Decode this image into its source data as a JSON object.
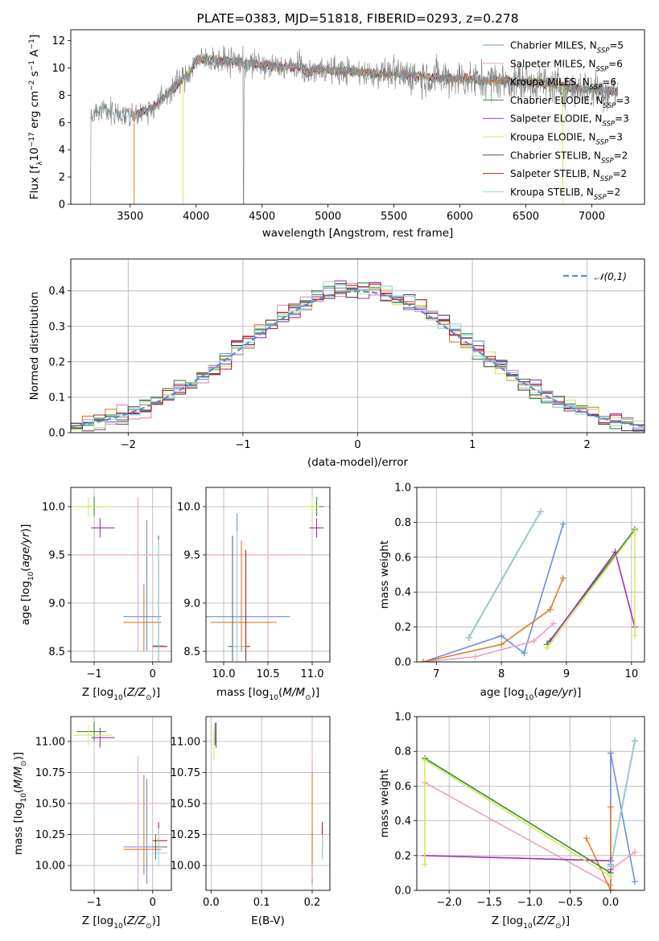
{
  "colors": {
    "grid": "#b0b0b0",
    "spec": [
      "#6a8fd8",
      "#e8a0c8",
      "#e07b28",
      "#3a8a3a",
      "#9b35b0",
      "#d4e860",
      "#555555",
      "#b02020",
      "#8fd8e0"
    ],
    "hist": [
      "#6a8fd8",
      "#e88ac2",
      "#e07b28",
      "#2f8f2f",
      "#9b35b0",
      "#c9e870",
      "#444444",
      "#b02020",
      "#8fd8e0"
    ]
  },
  "chart_data": [
    {
      "type": "line",
      "name": "spectrum",
      "title": "PLATE=0383, MJD=51818, FIBERID=0293, z=0.278",
      "xlabel": "wavelength [Angstrom, rest frame]",
      "ylabel": "Flux [f_λ 10^-17 erg cm^-2 s^-1 A^-1]",
      "xlim": [
        3050,
        7400
      ],
      "ylim": [
        0,
        12.8
      ],
      "xticks": [
        "3500",
        "4000",
        "4500",
        "5000",
        "5500",
        "6000",
        "6500",
        "7000"
      ],
      "yticks": [
        "0",
        "2",
        "4",
        "6",
        "8",
        "10",
        "12"
      ],
      "continuum": {
        "x": [
          3200,
          3250,
          3300,
          3400,
          3500,
          3600,
          3700,
          3800,
          3900,
          3950,
          4000,
          4100,
          4200,
          4300,
          4400,
          4600,
          4800,
          4840,
          4900,
          5000,
          5200,
          5400,
          5600,
          5800,
          6000,
          6200,
          6400,
          6600,
          6800,
          7000,
          7200
        ],
        "y": [
          6.2,
          6.8,
          7.0,
          6.7,
          6.5,
          6.8,
          7.3,
          8.3,
          9.2,
          9.6,
          10.6,
          10.6,
          10.5,
          10.5,
          10.3,
          10.1,
          10.1,
          9.6,
          9.9,
          9.9,
          9.7,
          9.6,
          9.5,
          9.3,
          9.2,
          9.1,
          9.0,
          8.9,
          8.6,
          8.4,
          8.3
        ]
      },
      "legend": [
        {
          "name": "Chabrier MILES",
          "nssp": "5"
        },
        {
          "name": "Salpeter MILES",
          "nssp": "6"
        },
        {
          "name": "Kroupa MILES",
          "nssp": "6"
        },
        {
          "name": "Chabrier ELODIE",
          "nssp": "3"
        },
        {
          "name": "Salpeter ELODIE",
          "nssp": "3"
        },
        {
          "name": "Kroupa ELODIE",
          "nssp": "3"
        },
        {
          "name": "Chabrier STELIB",
          "nssp": "2"
        },
        {
          "name": "Salpeter STELIB",
          "nssp": "2"
        },
        {
          "name": "Kroupa STELIB",
          "nssp": "2"
        }
      ],
      "legend_position": "upper-right"
    },
    {
      "type": "histogram",
      "name": "residuals",
      "xlabel": "(data-model)/error",
      "ylabel": "Normed distribution",
      "xlim": [
        -2.5,
        2.5
      ],
      "ylim": [
        0,
        0.49
      ],
      "xticks": [
        "−2",
        "−1",
        "0",
        "1",
        "2"
      ],
      "yticks": [
        "0.0",
        "0.1",
        "0.2",
        "0.3",
        "0.4"
      ],
      "bin_width": 0.1,
      "legend": "𝒩(0,1)",
      "series_count": 9
    },
    {
      "type": "errorbar",
      "name": "age-vs-Z",
      "xlabel": "Z [log10(Z/Z⊙)]",
      "ylabel": "age  [log10(age/yr)]",
      "xlim": [
        -1.4,
        0.32
      ],
      "ylim": [
        8.39,
        10.2
      ],
      "xticks": [
        "−1",
        "0"
      ],
      "yticks": [
        "8.5",
        "9.0",
        "9.5",
        "10.0"
      ],
      "points": [
        {
          "x": -0.1,
          "xerr": [
            0.4,
            0.25
          ],
          "y": 8.86,
          "yerr": [
            0.35,
            1.0
          ]
        },
        {
          "x": -0.25,
          "xerr": [
            1.0,
            0.5
          ],
          "y": 9.5,
          "yerr": [
            1.0,
            0.6
          ]
        },
        {
          "x": -0.15,
          "xerr": [
            0.35,
            0.3
          ],
          "y": 8.8,
          "yerr": [
            0.3,
            0.4
          ]
        },
        {
          "x": -1.0,
          "xerr": [
            0.3,
            0.2
          ],
          "y": 10.0,
          "yerr": [
            0.1,
            0.1
          ]
        },
        {
          "x": -0.9,
          "xerr": [
            0.15,
            0.25
          ],
          "y": 9.78,
          "yerr": [
            0.1,
            0.1
          ]
        },
        {
          "x": -1.1,
          "xerr": [
            0.25,
            0.4
          ],
          "y": 10.0,
          "yerr": [
            0.1,
            0.1
          ]
        },
        {
          "x": 0.1,
          "xerr": [
            0.1,
            0.1
          ],
          "y": 8.55,
          "yerr": [
            0.2,
            1.15
          ]
        },
        {
          "x": 0.1,
          "xerr": [
            0.1,
            0.15
          ],
          "y": 8.55,
          "yerr": [
            0.2,
            0.9
          ]
        },
        {
          "x": 0.1,
          "xerr": [
            0.1,
            0.1
          ],
          "y": 8.56,
          "yerr": [
            0.2,
            1.1
          ]
        }
      ]
    },
    {
      "type": "errorbar",
      "name": "age-vs-mass",
      "xlabel": "mass [log10(M/M⊙)]",
      "ylabel": "",
      "xlim": [
        9.8,
        11.2
      ],
      "ylim": [
        8.39,
        10.2
      ],
      "xticks": [
        "10.0",
        "10.5",
        "11.0"
      ],
      "yticks": [
        "8.5",
        "9.0",
        "9.5",
        "10.0"
      ],
      "points": [
        {
          "x": 10.15,
          "xerr": [
            0.35,
            0.6
          ],
          "y": 8.86,
          "yerr": [
            0.35,
            1.07
          ]
        },
        {
          "x": 10.5,
          "xerr": [
            0.9,
            0.4
          ],
          "y": 9.5,
          "yerr": [
            1.0,
            0.6
          ]
        },
        {
          "x": 10.2,
          "xerr": [
            0.35,
            0.4
          ],
          "y": 8.8,
          "yerr": [
            0.3,
            0.85
          ]
        },
        {
          "x": 11.05,
          "xerr": [
            0.1,
            0.08
          ],
          "y": 10.0,
          "yerr": [
            0.1,
            0.1
          ]
        },
        {
          "x": 11.05,
          "xerr": [
            0.08,
            0.08
          ],
          "y": 9.78,
          "yerr": [
            0.1,
            0.1
          ]
        },
        {
          "x": 11.0,
          "xerr": [
            0.1,
            0.08
          ],
          "y": 10.0,
          "yerr": [
            0.1,
            0.1
          ]
        },
        {
          "x": 10.1,
          "xerr": [
            0.05,
            0.05
          ],
          "y": 8.55,
          "yerr": [
            0.15,
            1.15
          ]
        },
        {
          "x": 10.25,
          "xerr": [
            0.05,
            0.05
          ],
          "y": 8.55,
          "yerr": [
            0.15,
            1.0
          ]
        },
        {
          "x": 10.15,
          "xerr": [
            0.05,
            0.1
          ],
          "y": 8.55,
          "yerr": [
            0.15,
            1.2
          ]
        }
      ]
    },
    {
      "type": "line",
      "name": "massweight-vs-age",
      "xlabel": "age  [log10(age/yr)]",
      "ylabel": "mass weight",
      "xlim": [
        6.7,
        10.2
      ],
      "ylim": [
        0,
        1
      ],
      "xticks": [
        "7",
        "8",
        "9",
        "10"
      ],
      "yticks": [
        "0.0",
        "0.2",
        "0.4",
        "0.6",
        "0.8",
        "1.0"
      ],
      "series": [
        {
          "x": [
            6.8,
            8.0,
            8.35,
            8.95
          ],
          "y": [
            0.0,
            0.15,
            0.05,
            0.79
          ]
        },
        {
          "x": [
            6.8,
            7.6,
            8.5,
            8.8
          ],
          "y": [
            0.0,
            0.03,
            0.12,
            0.22
          ]
        },
        {
          "x": [
            6.8,
            8.0,
            8.75,
            8.95
          ],
          "y": [
            0.0,
            0.1,
            0.3,
            0.48
          ]
        },
        {
          "x": [
            8.7,
            10.05
          ],
          "y": [
            0.1,
            0.76
          ]
        },
        {
          "x": [
            8.75,
            9.75,
            10.05
          ],
          "y": [
            0.12,
            0.63,
            0.2
          ]
        },
        {
          "x": [
            8.7,
            10.05,
            10.05
          ],
          "y": [
            0.08,
            0.75,
            0.15
          ]
        },
        {
          "x": [
            7.5,
            8.6
          ],
          "y": [
            0.14,
            0.86
          ]
        },
        {
          "x": [
            7.5,
            8.6
          ],
          "y": [
            0.14,
            0.86
          ]
        },
        {
          "x": [
            7.5,
            8.6
          ],
          "y": [
            0.14,
            0.86
          ]
        }
      ]
    },
    {
      "type": "errorbar",
      "name": "mass-vs-Z",
      "xlabel": "Z [log10(Z/Z⊙)]",
      "ylabel": "mass [log10(M/M⊙)]",
      "xlim": [
        -1.4,
        0.32
      ],
      "ylim": [
        9.8,
        11.2
      ],
      "xticks": [
        "−1",
        "0"
      ],
      "yticks": [
        "10.00",
        "10.25",
        "10.50",
        "10.75",
        "11.00"
      ],
      "points": [
        {
          "x": -0.1,
          "xerr": [
            0.4,
            0.35
          ],
          "y": 10.15,
          "yerr": [
            0.3,
            0.55
          ]
        },
        {
          "x": -0.25,
          "xerr": [
            1.0,
            0.5
          ],
          "y": 10.5,
          "yerr": [
            0.9,
            0.38
          ]
        },
        {
          "x": -0.15,
          "xerr": [
            0.35,
            0.3
          ],
          "y": 10.13,
          "yerr": [
            0.2,
            0.6
          ]
        },
        {
          "x": -1.0,
          "xerr": [
            0.3,
            0.2
          ],
          "y": 11.08,
          "yerr": [
            0.08,
            0.08
          ]
        },
        {
          "x": -0.9,
          "xerr": [
            0.15,
            0.25
          ],
          "y": 11.03,
          "yerr": [
            0.08,
            0.08
          ]
        },
        {
          "x": -1.1,
          "xerr": [
            0.25,
            0.4
          ],
          "y": 11.05,
          "yerr": [
            0.08,
            0.08
          ]
        },
        {
          "x": 0.05,
          "xerr": [
            0.05,
            0.2
          ],
          "y": 10.15,
          "yerr": [
            0.1,
            0.1
          ]
        },
        {
          "x": 0.1,
          "xerr": [
            0.1,
            0.15
          ],
          "y": 10.2,
          "yerr": [
            0.1,
            0.15
          ]
        },
        {
          "x": 0.1,
          "xerr": [
            0.1,
            0.15
          ],
          "y": 10.1,
          "yerr": [
            0.1,
            0.2
          ]
        }
      ]
    },
    {
      "type": "errorbar",
      "name": "mass-vs-ebv",
      "xlabel": "E(B-V)",
      "ylabel": "",
      "xlim": [
        -0.01,
        0.235
      ],
      "ylim": [
        9.8,
        11.2
      ],
      "xticks": [
        "0.0",
        "0.1",
        "0.2"
      ],
      "yticks": [
        "10.00",
        "10.25",
        "10.50",
        "10.75",
        "11.00"
      ],
      "points": [
        {
          "x": 0.2,
          "y": 10.15,
          "yerr": [
            0.3,
            0.15
          ]
        },
        {
          "x": 0.2,
          "y": 10.5,
          "yerr": [
            0.6,
            0.38
          ]
        },
        {
          "x": 0.2,
          "y": 10.4,
          "yerr": [
            0.4,
            0.35
          ]
        },
        {
          "x": 0.008,
          "y": 11.07,
          "yerr": [
            0.1,
            0.08
          ]
        },
        {
          "x": 0.01,
          "y": 11.05,
          "yerr": [
            0.1,
            0.1
          ]
        },
        {
          "x": 0.006,
          "y": 11.0,
          "yerr": [
            0.15,
            0.1
          ]
        },
        {
          "x": 0.22,
          "y": 10.2,
          "yerr": [
            0.15,
            0.1
          ]
        },
        {
          "x": 0.22,
          "y": 10.2,
          "yerr": [
            0.1,
            0.15
          ]
        },
        {
          "x": 0.22,
          "y": 10.15,
          "yerr": [
            0.1,
            0.1
          ]
        }
      ]
    },
    {
      "type": "line",
      "name": "massweight-vs-Z",
      "xlabel": "Z [log10(Z/Z⊙)]",
      "ylabel": "mass weight",
      "xlim": [
        -2.4,
        0.42
      ],
      "ylim": [
        0,
        1
      ],
      "xticks": [
        "−2.0",
        "−1.5",
        "−1.0",
        "−0.5",
        "0.0"
      ],
      "yticks": [
        "0.0",
        "0.2",
        "0.4",
        "0.6",
        "0.8",
        "1.0"
      ],
      "series": [
        {
          "x": [
            0.0,
            0.0,
            0.0,
            0.3
          ],
          "y": [
            0.0,
            0.15,
            0.79,
            0.05
          ]
        },
        {
          "x": [
            -2.3,
            0.0,
            0.0,
            0.3
          ],
          "y": [
            0.62,
            0.03,
            0.12,
            0.22
          ]
        },
        {
          "x": [
            -0.3,
            0.0,
            0.0
          ],
          "y": [
            0.3,
            0.0,
            0.48
          ]
        },
        {
          "x": [
            -2.3,
            0.0
          ],
          "y": [
            0.76,
            0.1
          ]
        },
        {
          "x": [
            -2.3,
            0.0,
            0.0
          ],
          "y": [
            0.2,
            0.17,
            0.12
          ]
        },
        {
          "x": [
            -2.3,
            -2.3,
            0.0
          ],
          "y": [
            0.15,
            0.75,
            0.08
          ]
        },
        {
          "x": [
            0.0,
            0.3
          ],
          "y": [
            0.14,
            0.86
          ]
        },
        {
          "x": [
            0.0,
            0.3
          ],
          "y": [
            0.14,
            0.86
          ]
        },
        {
          "x": [
            0.0,
            0.3
          ],
          "y": [
            0.14,
            0.86
          ]
        }
      ]
    }
  ]
}
